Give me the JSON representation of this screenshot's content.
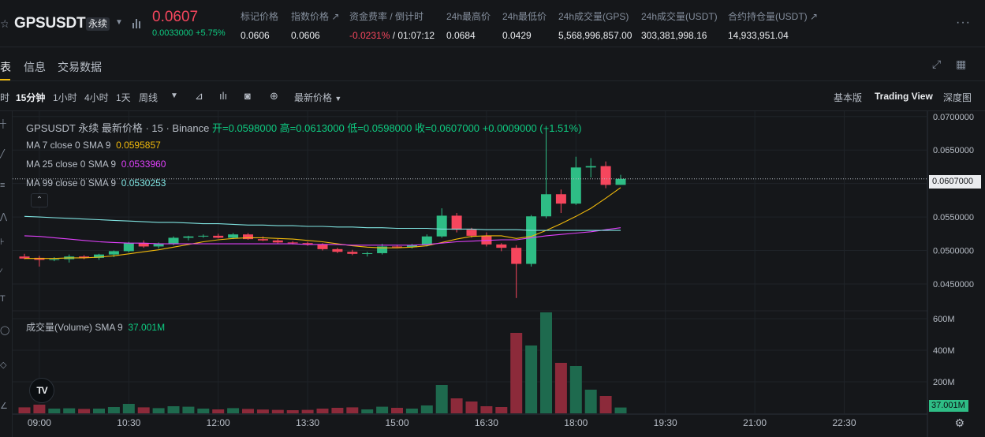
{
  "header": {
    "symbol": "GPSUSDT",
    "contract_type": "永续",
    "last_price": "0.0607",
    "change": "0.0033000 +5.75%",
    "stats": [
      {
        "label": "标记价格",
        "value": "0.0606"
      },
      {
        "label": "指数价格 ↗",
        "value": "0.0606"
      },
      {
        "label": "资金费率 / 倒计时",
        "value_neg": "-0.0231%",
        "value": " / 01:07:12"
      },
      {
        "label": "24h最高价",
        "value": "0.0684"
      },
      {
        "label": "24h最低价",
        "value": "0.0429"
      },
      {
        "label": "24h成交量(GPS)",
        "value": "5,568,996,857.00"
      },
      {
        "label": "24h成交量(USDT)",
        "value": "303,381,998.16"
      },
      {
        "label": "合约持仓量(USDT) ↗",
        "value": "14,933,951.04"
      }
    ],
    "more_icon": "more-horizontal-icon"
  },
  "tabs": {
    "items": [
      "表",
      "信息",
      "交易数据"
    ],
    "active": "表"
  },
  "toolbar": {
    "intervals": [
      "时",
      "15分钟",
      "1小时",
      "4小时",
      "1天",
      "周线"
    ],
    "active_interval": "15分钟",
    "price_source": "最新价格",
    "views": [
      "基本版",
      "Trading View",
      "深度图"
    ],
    "active_view": "Trading View"
  },
  "legend": {
    "title": "GPSUSDT 永续 最新价格 · 15 · Binance",
    "ohlc": "开=0.0598000 高=0.0613000 低=0.0598000 收=0.0607000 +0.0009000 (+1.51%)",
    "ma": [
      {
        "label": "MA 7 close 0 SMA 9",
        "value": "0.0595857",
        "color": "#f0b90b"
      },
      {
        "label": "MA 25 close 0 SMA 9",
        "value": "0.0533960",
        "color": "#e040fb"
      },
      {
        "label": "MA 99 close 0 SMA 9",
        "value": "0.0530253",
        "color": "#7fe3e0"
      }
    ],
    "volume": {
      "label": "成交量(Volume) SMA 9",
      "value": "37.001M"
    }
  },
  "colors": {
    "up": "#2ebd85",
    "down": "#f6465d",
    "vol_up": "#1e6a4e",
    "vol_down": "#8c2a3a",
    "ma7": "#f0b90b",
    "ma25": "#e040fb",
    "ma99": "#7fe3e0"
  },
  "price_tag": "0.0607000",
  "volume_tag": "37.001M",
  "chart_data": {
    "type": "candlestick",
    "price_axis_ticks": [
      "0.0700000",
      "0.0650000",
      "0.0600000",
      "0.0550000",
      "0.0500000",
      "0.0450000"
    ],
    "price_range": [
      0.0417,
      0.0708
    ],
    "volume_axis_ticks": [
      "600M",
      "400M",
      "200M"
    ],
    "volume_range": [
      0,
      640
    ],
    "time_axis_ticks": [
      "09:00",
      "10:30",
      "12:00",
      "13:30",
      "15:00",
      "16:30",
      "18:00",
      "19:30",
      "21:00",
      "22:30"
    ],
    "time_first_bar": "08:45",
    "bar_interval_minutes": 15,
    "candles": [
      {
        "o": 0.0491,
        "h": 0.0495,
        "l": 0.0487,
        "c": 0.0488,
        "v": 38
      },
      {
        "o": 0.0489,
        "h": 0.0492,
        "l": 0.0476,
        "c": 0.0486,
        "v": 55
      },
      {
        "o": 0.0486,
        "h": 0.049,
        "l": 0.0484,
        "c": 0.0487,
        "v": 30
      },
      {
        "o": 0.0487,
        "h": 0.0494,
        "l": 0.0482,
        "c": 0.0491,
        "v": 32
      },
      {
        "o": 0.0491,
        "h": 0.0493,
        "l": 0.0487,
        "c": 0.0489,
        "v": 28
      },
      {
        "o": 0.0489,
        "h": 0.0495,
        "l": 0.0486,
        "c": 0.0494,
        "v": 30
      },
      {
        "o": 0.0494,
        "h": 0.05,
        "l": 0.049,
        "c": 0.0499,
        "v": 40
      },
      {
        "o": 0.0499,
        "h": 0.0513,
        "l": 0.0497,
        "c": 0.0511,
        "v": 60
      },
      {
        "o": 0.0511,
        "h": 0.0515,
        "l": 0.0504,
        "c": 0.0506,
        "v": 38
      },
      {
        "o": 0.0506,
        "h": 0.0512,
        "l": 0.0503,
        "c": 0.051,
        "v": 33
      },
      {
        "o": 0.051,
        "h": 0.0521,
        "l": 0.0508,
        "c": 0.0519,
        "v": 45
      },
      {
        "o": 0.0519,
        "h": 0.0522,
        "l": 0.0515,
        "c": 0.0521,
        "v": 42
      },
      {
        "o": 0.0521,
        "h": 0.0524,
        "l": 0.0519,
        "c": 0.0522,
        "v": 30
      },
      {
        "o": 0.0522,
        "h": 0.0525,
        "l": 0.0518,
        "c": 0.0519,
        "v": 25
      },
      {
        "o": 0.0519,
        "h": 0.0526,
        "l": 0.0517,
        "c": 0.0524,
        "v": 33
      },
      {
        "o": 0.0524,
        "h": 0.0526,
        "l": 0.0516,
        "c": 0.0517,
        "v": 28
      },
      {
        "o": 0.0517,
        "h": 0.0521,
        "l": 0.0514,
        "c": 0.0515,
        "v": 24
      },
      {
        "o": 0.0515,
        "h": 0.0517,
        "l": 0.051,
        "c": 0.0512,
        "v": 22
      },
      {
        "o": 0.0512,
        "h": 0.0514,
        "l": 0.0509,
        "c": 0.0511,
        "v": 20
      },
      {
        "o": 0.0511,
        "h": 0.0513,
        "l": 0.0507,
        "c": 0.0509,
        "v": 22
      },
      {
        "o": 0.0509,
        "h": 0.0511,
        "l": 0.05,
        "c": 0.0502,
        "v": 30
      },
      {
        "o": 0.0502,
        "h": 0.0504,
        "l": 0.0496,
        "c": 0.0498,
        "v": 35
      },
      {
        "o": 0.0498,
        "h": 0.0501,
        "l": 0.0493,
        "c": 0.0495,
        "v": 38
      },
      {
        "o": 0.0495,
        "h": 0.0498,
        "l": 0.0491,
        "c": 0.0496,
        "v": 25
      },
      {
        "o": 0.0496,
        "h": 0.051,
        "l": 0.0494,
        "c": 0.0506,
        "v": 42
      },
      {
        "o": 0.0506,
        "h": 0.0508,
        "l": 0.0504,
        "c": 0.0505,
        "v": 35
      },
      {
        "o": 0.0505,
        "h": 0.051,
        "l": 0.0503,
        "c": 0.0508,
        "v": 30
      },
      {
        "o": 0.0508,
        "h": 0.0524,
        "l": 0.0506,
        "c": 0.0521,
        "v": 50
      },
      {
        "o": 0.0521,
        "h": 0.0563,
        "l": 0.0519,
        "c": 0.0552,
        "v": 180
      },
      {
        "o": 0.0552,
        "h": 0.0556,
        "l": 0.0527,
        "c": 0.0531,
        "v": 95
      },
      {
        "o": 0.0531,
        "h": 0.0534,
        "l": 0.0519,
        "c": 0.0522,
        "v": 75
      },
      {
        "o": 0.0522,
        "h": 0.0527,
        "l": 0.0506,
        "c": 0.0509,
        "v": 45
      },
      {
        "o": 0.0509,
        "h": 0.0511,
        "l": 0.0499,
        "c": 0.0504,
        "v": 40
      },
      {
        "o": 0.0504,
        "h": 0.0508,
        "l": 0.0429,
        "c": 0.048,
        "v": 510
      },
      {
        "o": 0.048,
        "h": 0.0553,
        "l": 0.0476,
        "c": 0.0551,
        "v": 430
      },
      {
        "o": 0.0551,
        "h": 0.0684,
        "l": 0.0548,
        "c": 0.0584,
        "v": 640
      },
      {
        "o": 0.0584,
        "h": 0.0591,
        "l": 0.0556,
        "c": 0.057,
        "v": 320
      },
      {
        "o": 0.057,
        "h": 0.064,
        "l": 0.0568,
        "c": 0.0624,
        "v": 300
      },
      {
        "o": 0.0624,
        "h": 0.0638,
        "l": 0.0609,
        "c": 0.0626,
        "v": 150
      },
      {
        "o": 0.0626,
        "h": 0.0633,
        "l": 0.0593,
        "c": 0.0598,
        "v": 110
      },
      {
        "o": 0.0598,
        "h": 0.0613,
        "l": 0.0598,
        "c": 0.0607,
        "v": 37
      }
    ],
    "series": [
      {
        "name": "MA 7 close 0 SMA 9",
        "values": [
          0.0488,
          0.0488,
          0.0488,
          0.0489,
          0.0489,
          0.049,
          0.0492,
          0.0495,
          0.0498,
          0.0501,
          0.0505,
          0.0509,
          0.0513,
          0.0516,
          0.0518,
          0.0519,
          0.0519,
          0.0518,
          0.0517,
          0.0515,
          0.0513,
          0.051,
          0.0507,
          0.0505,
          0.0504,
          0.0504,
          0.0505,
          0.0507,
          0.0512,
          0.0517,
          0.0521,
          0.0522,
          0.0522,
          0.0518,
          0.0521,
          0.053,
          0.054,
          0.0551,
          0.0563,
          0.0578,
          0.0594
        ]
      },
      {
        "name": "MA 25 close 0 SMA 9",
        "values": [
          0.0522,
          0.0521,
          0.0519,
          0.0517,
          0.0515,
          0.0513,
          0.0512,
          0.0511,
          0.0511,
          0.051,
          0.051,
          0.051,
          0.051,
          0.051,
          0.051,
          0.051,
          0.051,
          0.051,
          0.051,
          0.0509,
          0.0509,
          0.0509,
          0.0508,
          0.0508,
          0.0508,
          0.0508,
          0.0508,
          0.0509,
          0.0511,
          0.0513,
          0.0514,
          0.0515,
          0.0516,
          0.0516,
          0.0519,
          0.0522,
          0.0524,
          0.0526,
          0.0528,
          0.0531,
          0.0534
        ]
      },
      {
        "name": "MA 99 close 0 SMA 9",
        "values": [
          0.0551,
          0.055,
          0.0549,
          0.0548,
          0.0547,
          0.0546,
          0.0545,
          0.0544,
          0.0543,
          0.0542,
          0.0542,
          0.0541,
          0.054,
          0.054,
          0.0539,
          0.0538,
          0.0538,
          0.0537,
          0.0537,
          0.0536,
          0.0536,
          0.0535,
          0.0535,
          0.0534,
          0.0534,
          0.0533,
          0.0533,
          0.0533,
          0.0532,
          0.0532,
          0.0532,
          0.0531,
          0.0531,
          0.0531,
          0.053,
          0.053,
          0.053,
          0.053,
          0.053,
          0.053,
          0.053
        ]
      }
    ]
  }
}
